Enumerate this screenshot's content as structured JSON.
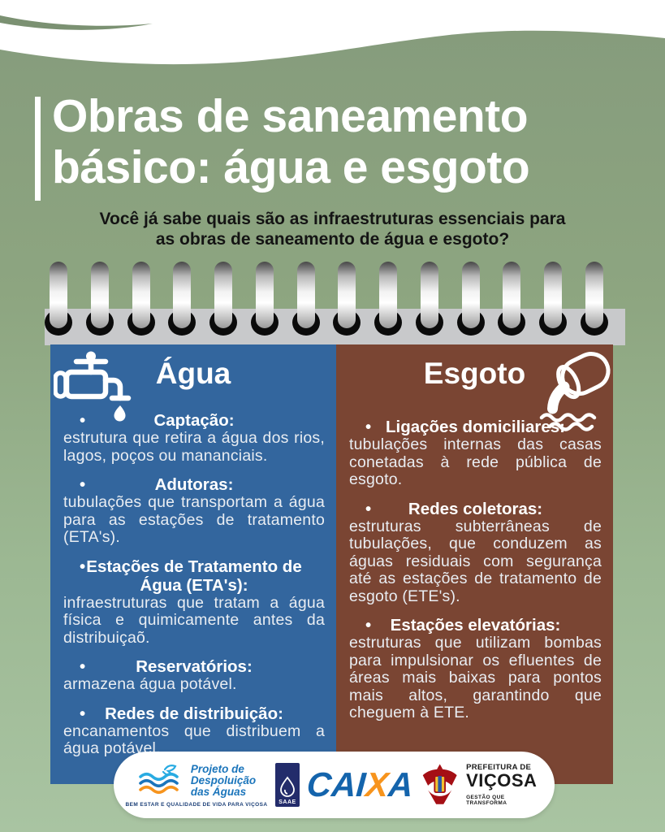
{
  "page": {
    "title_lines": [
      "Obras de saneamento",
      "básico: água e esgoto"
    ],
    "subtitle_lines": [
      "Você já sabe quais são as infraestruturas essenciais para",
      "as obras de saneamento de água e esgoto?"
    ]
  },
  "spiral": {
    "rings": 14
  },
  "columns": {
    "water": {
      "heading": "Água",
      "icon": "faucet-icon",
      "items": [
        {
          "term": "Captação:",
          "desc": "estrutura que retira a água dos rios, lagos, poços ou mananciais."
        },
        {
          "term": "Adutoras:",
          "desc": "tubulações que transportam a água para as estações de tratamento (ETA's)."
        },
        {
          "term": "Estações de Tratamento de Água (ETA's):",
          "desc": "infraestruturas que tratam a água física e quimicamente antes da distribuiçaõ."
        },
        {
          "term": "Reservatórios:",
          "desc": "armazena água potável."
        },
        {
          "term": "Redes de distribuição:",
          "desc": "encanamentos que distribuem a água potável."
        }
      ]
    },
    "sewage": {
      "heading": "Esgoto",
      "icon": "sewage-pipe-icon",
      "items": [
        {
          "term": "Ligações domiciliares:",
          "desc": "tubulações internas das casas conetadas à rede pública de esgoto."
        },
        {
          "term": "Redes coletoras:",
          "desc": "estruturas subterrâneas de tubulações, que conduzem as águas residuais com segurança até as estações de tratamento de esgoto (ETE's)."
        },
        {
          "term": "Estações elevatórias:",
          "desc": "estruturas que utilizam bombas para impulsionar os efluentes de áreas mais baixas para pontos mais altos, garantindo que cheguem à ETE."
        }
      ]
    }
  },
  "footer": {
    "project": {
      "name_lines": [
        "Projeto de",
        "Despoluição",
        "das Águas"
      ],
      "tagline": "BEM ESTAR E QUALIDADE DE VIDA PARA VIÇOSA"
    },
    "saae": {
      "label": "SAAE"
    },
    "caixa": {
      "part1": "CAI",
      "part2": "X",
      "part3": "A"
    },
    "vicosa": {
      "line1": "PREFEITURA DE",
      "line2": "VIÇOSA",
      "tagline": "GESTÃO QUE TRANSFORMA"
    }
  },
  "colors": {
    "background_green_top": "#859b7c",
    "background_green_bottom": "#a9c4a2",
    "water_blue": "#33669e",
    "sewage_brown": "#7a4533",
    "spiral_bar_gray": "#c8c9cb",
    "caixa_blue": "#1464ac",
    "caixa_orange": "#f7941d",
    "project_blue": "#1b75bb",
    "crest_red": "#a50f15"
  }
}
